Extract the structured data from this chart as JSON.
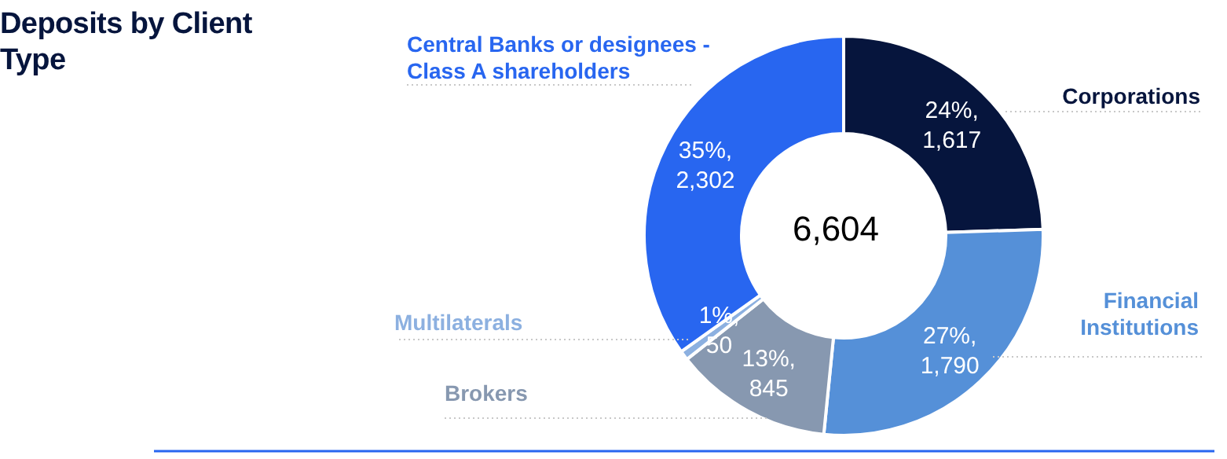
{
  "chart_data": {
    "type": "donut",
    "title": "Deposits by Client Type",
    "categories": [
      "Corporations",
      "Financial Institutions",
      "Brokers",
      "Multilaterals",
      "Central Banks or designees - Class A shareholders"
    ],
    "values": [
      1617,
      1790,
      845,
      50,
      2302
    ],
    "colors": [
      "#06153d",
      "#5590d8",
      "#8798b0",
      "#8cb0e0",
      "#2866f0"
    ],
    "value_labels": [
      "24%, 1,617",
      "27%, 1,790",
      "13%, 845",
      "1%, 50",
      "35%, 2,302"
    ],
    "annotations": [
      "6,604"
    ],
    "legend": false
  }
}
